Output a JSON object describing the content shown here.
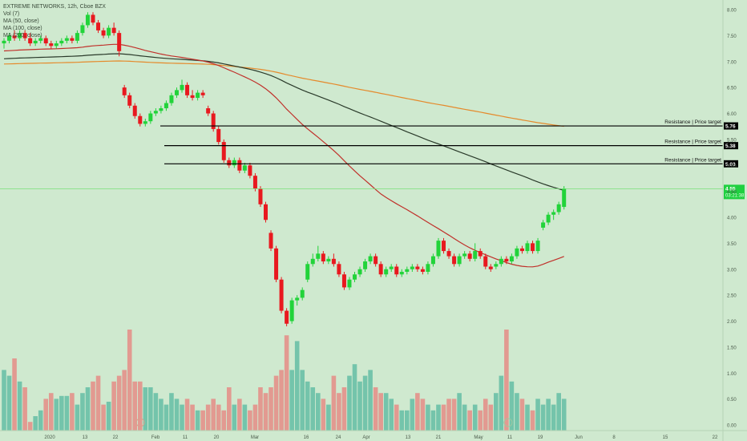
{
  "legend": {
    "title": "EXTREME NETWORKS, 12h, Cboe BZX",
    "vol": "Vol (7)",
    "ma50": "MA (50, close)",
    "ma100": "MA (100, close)",
    "ma200": "MA (200, close)"
  },
  "chart_data": {
    "type": "candlestick",
    "grid": false,
    "ylim": [
      0,
      8.1
    ],
    "y_ticks": [
      "8.00",
      "7.50",
      "7.00",
      "6.50",
      "6.00",
      "5.50",
      "5.00",
      "4.50",
      "4.00",
      "3.50",
      "3.00",
      "2.50",
      "2.00",
      "1.50",
      "1.00",
      "0.50",
      "0.00"
    ],
    "x_ticks": [
      "2020",
      "13",
      "22",
      "Feb",
      "11",
      "20",
      "Mar",
      "16",
      "24",
      "Apr",
      "13",
      "21",
      "May",
      "11",
      "19",
      "Jun",
      "8",
      "15",
      "22"
    ],
    "colors": {
      "up": "#22d33a",
      "down": "#e8191f",
      "vol_up": "#6fc2a9",
      "vol_down": "#e3968d",
      "ma50": "#c0302a",
      "ma100": "#2a3a2a",
      "ma200": "#e58a2c",
      "resistance": "#000000"
    },
    "resistance_lines": [
      {
        "label": "Resistance | Price target",
        "price": 5.76,
        "price_label": "5.76"
      },
      {
        "label": "Resistance | Price target",
        "price": 5.38,
        "price_label": "5.38"
      },
      {
        "label": "Resistance | Price target",
        "price": 5.03,
        "price_label": "5.03"
      }
    ],
    "last_price": {
      "price": 4.55,
      "price_label": "4.55",
      "timer": "03:21:38",
      "line_color": "#79e079"
    },
    "candles": [
      {
        "o": 7.35,
        "h": 7.45,
        "l": 7.25,
        "c": 7.4
      },
      {
        "o": 7.4,
        "h": 7.55,
        "l": 7.35,
        "c": 7.5
      },
      {
        "o": 7.5,
        "h": 7.6,
        "l": 7.4,
        "c": 7.45
      },
      {
        "o": 7.45,
        "h": 7.6,
        "l": 7.4,
        "c": 7.55
      },
      {
        "o": 7.55,
        "h": 7.6,
        "l": 7.4,
        "c": 7.45
      },
      {
        "o": 7.45,
        "h": 7.55,
        "l": 7.3,
        "c": 7.35
      },
      {
        "o": 7.35,
        "h": 7.45,
        "l": 7.3,
        "c": 7.4
      },
      {
        "o": 7.4,
        "h": 7.5,
        "l": 7.35,
        "c": 7.45
      },
      {
        "o": 7.45,
        "h": 7.5,
        "l": 7.3,
        "c": 7.35
      },
      {
        "o": 7.35,
        "h": 7.4,
        "l": 7.25,
        "c": 7.3
      },
      {
        "o": 7.3,
        "h": 7.4,
        "l": 7.25,
        "c": 7.35
      },
      {
        "o": 7.35,
        "h": 7.45,
        "l": 7.3,
        "c": 7.4
      },
      {
        "o": 7.4,
        "h": 7.5,
        "l": 7.35,
        "c": 7.45
      },
      {
        "o": 7.45,
        "h": 7.5,
        "l": 7.35,
        "c": 7.4
      },
      {
        "o": 7.4,
        "h": 7.6,
        "l": 7.35,
        "c": 7.55
      },
      {
        "o": 7.55,
        "h": 7.75,
        "l": 7.5,
        "c": 7.7
      },
      {
        "o": 7.7,
        "h": 7.95,
        "l": 7.65,
        "c": 7.9
      },
      {
        "o": 7.9,
        "h": 7.95,
        "l": 7.7,
        "c": 7.75
      },
      {
        "o": 7.75,
        "h": 7.8,
        "l": 7.55,
        "c": 7.6
      },
      {
        "o": 7.6,
        "h": 7.65,
        "l": 7.45,
        "c": 7.5
      },
      {
        "o": 7.5,
        "h": 7.7,
        "l": 7.45,
        "c": 7.65
      },
      {
        "o": 7.65,
        "h": 7.75,
        "l": 7.5,
        "c": 7.55
      },
      {
        "o": 7.55,
        "h": 7.6,
        "l": 7.1,
        "c": 7.2
      },
      {
        "o": 6.5,
        "h": 6.55,
        "l": 6.3,
        "c": 6.35
      },
      {
        "o": 6.35,
        "h": 6.4,
        "l": 6.1,
        "c": 6.15
      },
      {
        "o": 6.15,
        "h": 6.2,
        "l": 5.9,
        "c": 5.95
      },
      {
        "o": 5.95,
        "h": 6.0,
        "l": 5.75,
        "c": 5.8
      },
      {
        "o": 5.8,
        "h": 5.9,
        "l": 5.75,
        "c": 5.85
      },
      {
        "o": 5.85,
        "h": 6.05,
        "l": 5.8,
        "c": 6.0
      },
      {
        "o": 6.0,
        "h": 6.1,
        "l": 5.95,
        "c": 6.05
      },
      {
        "o": 6.05,
        "h": 6.15,
        "l": 6.0,
        "c": 6.1
      },
      {
        "o": 6.1,
        "h": 6.25,
        "l": 6.05,
        "c": 6.2
      },
      {
        "o": 6.2,
        "h": 6.4,
        "l": 6.15,
        "c": 6.35
      },
      {
        "o": 6.35,
        "h": 6.5,
        "l": 6.3,
        "c": 6.45
      },
      {
        "o": 6.45,
        "h": 6.65,
        "l": 6.4,
        "c": 6.55
      },
      {
        "o": 6.55,
        "h": 6.6,
        "l": 6.3,
        "c": 6.35
      },
      {
        "o": 6.35,
        "h": 6.45,
        "l": 6.25,
        "c": 6.3
      },
      {
        "o": 6.3,
        "h": 6.45,
        "l": 6.25,
        "c": 6.4
      },
      {
        "o": 6.4,
        "h": 6.45,
        "l": 6.3,
        "c": 6.35
      },
      {
        "o": 6.1,
        "h": 6.15,
        "l": 5.95,
        "c": 6.0
      },
      {
        "o": 6.0,
        "h": 6.05,
        "l": 5.65,
        "c": 5.7
      },
      {
        "o": 5.7,
        "h": 5.75,
        "l": 5.4,
        "c": 5.45
      },
      {
        "o": 5.45,
        "h": 5.5,
        "l": 5.05,
        "c": 5.1
      },
      {
        "o": 5.1,
        "h": 5.15,
        "l": 4.95,
        "c": 5.0
      },
      {
        "o": 5.0,
        "h": 5.15,
        "l": 4.95,
        "c": 5.1
      },
      {
        "o": 5.1,
        "h": 5.15,
        "l": 4.85,
        "c": 4.9
      },
      {
        "o": 4.9,
        "h": 5.05,
        "l": 4.85,
        "c": 5.0
      },
      {
        "o": 5.0,
        "h": 5.05,
        "l": 4.75,
        "c": 4.8
      },
      {
        "o": 4.8,
        "h": 4.85,
        "l": 4.5,
        "c": 4.55
      },
      {
        "o": 4.55,
        "h": 4.6,
        "l": 4.2,
        "c": 4.25
      },
      {
        "o": 4.25,
        "h": 4.3,
        "l": 3.9,
        "c": 3.95
      },
      {
        "o": 3.7,
        "h": 3.75,
        "l": 3.35,
        "c": 3.4
      },
      {
        "o": 3.4,
        "h": 3.45,
        "l": 2.75,
        "c": 2.8
      },
      {
        "o": 2.8,
        "h": 2.85,
        "l": 2.15,
        "c": 2.2
      },
      {
        "o": 2.2,
        "h": 2.25,
        "l": 1.9,
        "c": 1.95
      },
      {
        "o": 2.0,
        "h": 2.45,
        "l": 1.95,
        "c": 2.4
      },
      {
        "o": 2.4,
        "h": 2.5,
        "l": 2.3,
        "c": 2.45
      },
      {
        "o": 2.45,
        "h": 2.65,
        "l": 2.4,
        "c": 2.6
      },
      {
        "o": 2.8,
        "h": 3.15,
        "l": 2.75,
        "c": 3.1
      },
      {
        "o": 3.1,
        "h": 3.3,
        "l": 3.05,
        "c": 3.2
      },
      {
        "o": 3.2,
        "h": 3.45,
        "l": 3.15,
        "c": 3.3
      },
      {
        "o": 3.3,
        "h": 3.35,
        "l": 3.1,
        "c": 3.15
      },
      {
        "o": 3.15,
        "h": 3.25,
        "l": 3.1,
        "c": 3.2
      },
      {
        "o": 3.2,
        "h": 3.3,
        "l": 3.05,
        "c": 3.1
      },
      {
        "o": 3.1,
        "h": 3.15,
        "l": 2.85,
        "c": 2.9
      },
      {
        "o": 2.9,
        "h": 2.95,
        "l": 2.6,
        "c": 2.65
      },
      {
        "o": 2.65,
        "h": 2.85,
        "l": 2.6,
        "c": 2.8
      },
      {
        "o": 2.8,
        "h": 2.95,
        "l": 2.75,
        "c": 2.9
      },
      {
        "o": 2.9,
        "h": 3.05,
        "l": 2.85,
        "c": 3.0
      },
      {
        "o": 3.0,
        "h": 3.2,
        "l": 2.95,
        "c": 3.15
      },
      {
        "o": 3.15,
        "h": 3.3,
        "l": 3.1,
        "c": 3.25
      },
      {
        "o": 3.25,
        "h": 3.3,
        "l": 3.05,
        "c": 3.1
      },
      {
        "o": 3.1,
        "h": 3.15,
        "l": 2.85,
        "c": 2.9
      },
      {
        "o": 2.9,
        "h": 3.05,
        "l": 2.85,
        "c": 3.0
      },
      {
        "o": 3.0,
        "h": 3.1,
        "l": 2.95,
        "c": 3.05
      },
      {
        "o": 3.05,
        "h": 3.1,
        "l": 2.85,
        "c": 2.9
      },
      {
        "o": 2.9,
        "h": 3.0,
        "l": 2.85,
        "c": 2.95
      },
      {
        "o": 2.95,
        "h": 3.05,
        "l": 2.9,
        "c": 3.0
      },
      {
        "o": 3.0,
        "h": 3.1,
        "l": 2.95,
        "c": 3.05
      },
      {
        "o": 3.05,
        "h": 3.1,
        "l": 2.95,
        "c": 3.0
      },
      {
        "o": 3.0,
        "h": 3.05,
        "l": 2.9,
        "c": 2.95
      },
      {
        "o": 2.95,
        "h": 3.15,
        "l": 2.9,
        "c": 3.1
      },
      {
        "o": 3.1,
        "h": 3.3,
        "l": 3.05,
        "c": 3.25
      },
      {
        "o": 3.25,
        "h": 3.6,
        "l": 3.2,
        "c": 3.55
      },
      {
        "o": 3.55,
        "h": 3.6,
        "l": 3.3,
        "c": 3.35
      },
      {
        "o": 3.35,
        "h": 3.4,
        "l": 3.2,
        "c": 3.25
      },
      {
        "o": 3.25,
        "h": 3.3,
        "l": 3.05,
        "c": 3.1
      },
      {
        "o": 3.1,
        "h": 3.3,
        "l": 3.05,
        "c": 3.25
      },
      {
        "o": 3.25,
        "h": 3.35,
        "l": 3.2,
        "c": 3.3
      },
      {
        "o": 3.3,
        "h": 3.35,
        "l": 3.15,
        "c": 3.2
      },
      {
        "o": 3.2,
        "h": 3.5,
        "l": 3.15,
        "c": 3.35
      },
      {
        "o": 3.35,
        "h": 3.4,
        "l": 3.2,
        "c": 3.25
      },
      {
        "o": 3.25,
        "h": 3.3,
        "l": 3.0,
        "c": 3.05
      },
      {
        "o": 3.05,
        "h": 3.1,
        "l": 2.95,
        "c": 3.0
      },
      {
        "o": 3.05,
        "h": 3.15,
        "l": 3.0,
        "c": 3.1
      },
      {
        "o": 3.1,
        "h": 3.25,
        "l": 3.05,
        "c": 3.2
      },
      {
        "o": 3.2,
        "h": 3.25,
        "l": 3.1,
        "c": 3.15
      },
      {
        "o": 3.15,
        "h": 3.3,
        "l": 3.1,
        "c": 3.25
      },
      {
        "o": 3.25,
        "h": 3.45,
        "l": 3.2,
        "c": 3.4
      },
      {
        "o": 3.4,
        "h": 3.45,
        "l": 3.3,
        "c": 3.35
      },
      {
        "o": 3.35,
        "h": 3.55,
        "l": 3.3,
        "c": 3.5
      },
      {
        "o": 3.5,
        "h": 3.55,
        "l": 3.3,
        "c": 3.35
      },
      {
        "o": 3.35,
        "h": 3.6,
        "l": 3.3,
        "c": 3.55
      },
      {
        "o": 3.8,
        "h": 3.95,
        "l": 3.75,
        "c": 3.9
      },
      {
        "o": 3.9,
        "h": 4.1,
        "l": 3.85,
        "c": 4.05
      },
      {
        "o": 4.05,
        "h": 4.15,
        "l": 3.95,
        "c": 4.1
      },
      {
        "o": 4.1,
        "h": 4.3,
        "l": 4.05,
        "c": 4.25
      },
      {
        "o": 4.2,
        "h": 4.6,
        "l": 4.15,
        "c": 4.55
      }
    ],
    "volume": [
      1.05,
      0.95,
      1.25,
      0.85,
      0.75,
      0.15,
      0.25,
      0.35,
      0.55,
      0.65,
      0.55,
      0.6,
      0.6,
      0.65,
      0.45,
      0.65,
      0.75,
      0.85,
      0.95,
      0.45,
      0.5,
      0.85,
      0.95,
      1.05,
      1.75,
      0.85,
      0.85,
      0.75,
      0.75,
      0.65,
      0.55,
      0.45,
      0.65,
      0.55,
      0.45,
      0.55,
      0.45,
      0.35,
      0.35,
      0.45,
      0.55,
      0.45,
      0.35,
      0.75,
      0.45,
      0.55,
      0.45,
      0.35,
      0.45,
      0.75,
      0.65,
      0.75,
      0.95,
      1.05,
      1.65,
      1.05,
      1.55,
      1.05,
      0.85,
      0.75,
      0.65,
      0.55,
      0.45,
      0.95,
      0.65,
      0.75,
      0.95,
      1.15,
      0.85,
      0.95,
      1.05,
      0.75,
      0.65,
      0.65,
      0.55,
      0.45,
      0.35,
      0.35,
      0.55,
      0.65,
      0.55,
      0.45,
      0.35,
      0.45,
      0.45,
      0.55,
      0.55,
      0.65,
      0.45,
      0.35,
      0.45,
      0.35,
      0.55,
      0.45,
      0.65,
      0.95,
      1.75,
      0.85,
      0.65,
      0.55,
      0.45,
      0.35,
      0.55,
      0.45,
      0.55,
      0.45,
      0.65,
      0.55,
      1.15,
      0.65,
      0.75,
      0.65
    ]
  }
}
